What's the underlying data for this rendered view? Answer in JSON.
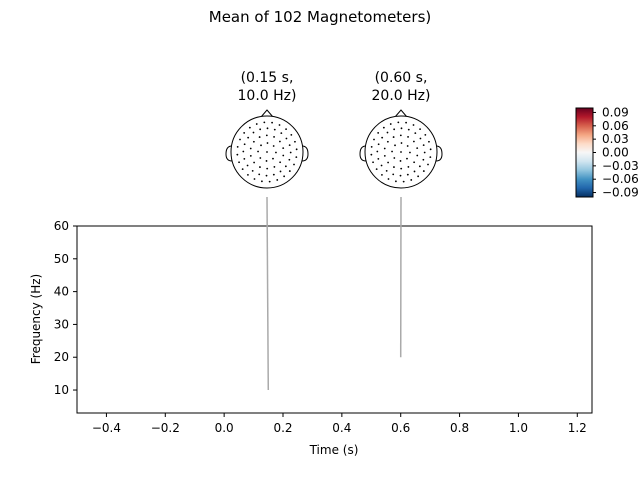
{
  "chart_data": {
    "type": "line",
    "title": "Mean of 102 Magnetometers)",
    "xlabel": "Time (s)",
    "ylabel": "Frequency (Hz)",
    "xlim": [
      -0.5,
      1.25
    ],
    "ylim": [
      3,
      60
    ],
    "x_ticks": [
      -0.4,
      -0.2,
      0.0,
      0.2,
      0.4,
      0.6,
      0.8,
      1.0,
      1.2
    ],
    "x_tick_labels": [
      "−0.4",
      "−0.2",
      "0.0",
      "0.2",
      "0.4",
      "0.6",
      "0.8",
      "1.0",
      "1.2"
    ],
    "y_ticks": [
      10,
      20,
      30,
      40,
      50,
      60
    ],
    "y_tick_labels": [
      "10",
      "20",
      "30",
      "40",
      "50",
      "60"
    ],
    "grid": false,
    "topomaps": [
      {
        "label_line1": "(0.15 s,",
        "label_line2": "10.0 Hz)",
        "time": 0.15,
        "freq": 10.0
      },
      {
        "label_line1": "(0.60 s,",
        "label_line2": "20.0 Hz)",
        "time": 0.6,
        "freq": 20.0
      }
    ],
    "colorbar": {
      "ticks": [
        0.09,
        0.06,
        0.03,
        0.0,
        -0.03,
        -0.06,
        -0.09
      ],
      "tick_labels": [
        "0.09",
        "0.06",
        "0.03",
        "0.00",
        "−0.03",
        "−0.06",
        "−0.09"
      ],
      "colormap": [
        "#053061",
        "#2166ac",
        "#4393c3",
        "#92c5de",
        "#d1e5f0",
        "#f7f7f7",
        "#fddbc7",
        "#f4a582",
        "#d6604d",
        "#b2182b",
        "#67001f"
      ]
    },
    "connector_color": "#aaaaaa"
  }
}
